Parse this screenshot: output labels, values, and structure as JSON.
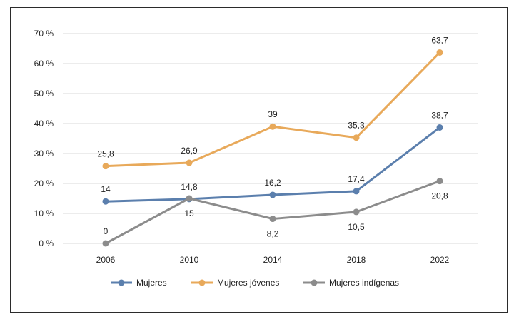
{
  "chart_data": {
    "type": "line",
    "title": "",
    "xlabel": "",
    "ylabel": "",
    "categories": [
      "2006",
      "2010",
      "2014",
      "2018",
      "2022"
    ],
    "ylim": [
      0,
      70
    ],
    "yticks": [
      0,
      10,
      20,
      30,
      40,
      50,
      60,
      70
    ],
    "ytick_labels": [
      "0 %",
      "10 %",
      "20 %",
      "30 %",
      "40 %",
      "50 %",
      "60 %",
      "70 %"
    ],
    "grid": true,
    "legend_position": "bottom",
    "series": [
      {
        "name": "Mujeres",
        "color": "#5b7fad",
        "values": [
          14,
          14.8,
          16.2,
          17.4,
          38.7
        ],
        "labels": [
          "14",
          "14,8",
          "16,2",
          "17,4",
          "38,7"
        ],
        "label_pos": [
          "above",
          "above",
          "above",
          "above",
          "above"
        ]
      },
      {
        "name": "Mujeres jóvenes",
        "color": "#e8a95a",
        "values": [
          25.8,
          26.9,
          39,
          35.3,
          63.7
        ],
        "labels": [
          "25,8",
          "26,9",
          "39",
          "35,3",
          "63,7"
        ],
        "label_pos": [
          "above",
          "above",
          "above",
          "above",
          "above"
        ]
      },
      {
        "name": "Mujeres indígenas",
        "color": "#8c8c8c",
        "values": [
          0,
          15,
          8.2,
          10.5,
          20.8
        ],
        "labels": [
          "0",
          "15",
          "8,2",
          "10,5",
          "20,8"
        ],
        "label_pos": [
          "above",
          "below",
          "below",
          "below",
          "below"
        ]
      }
    ]
  }
}
